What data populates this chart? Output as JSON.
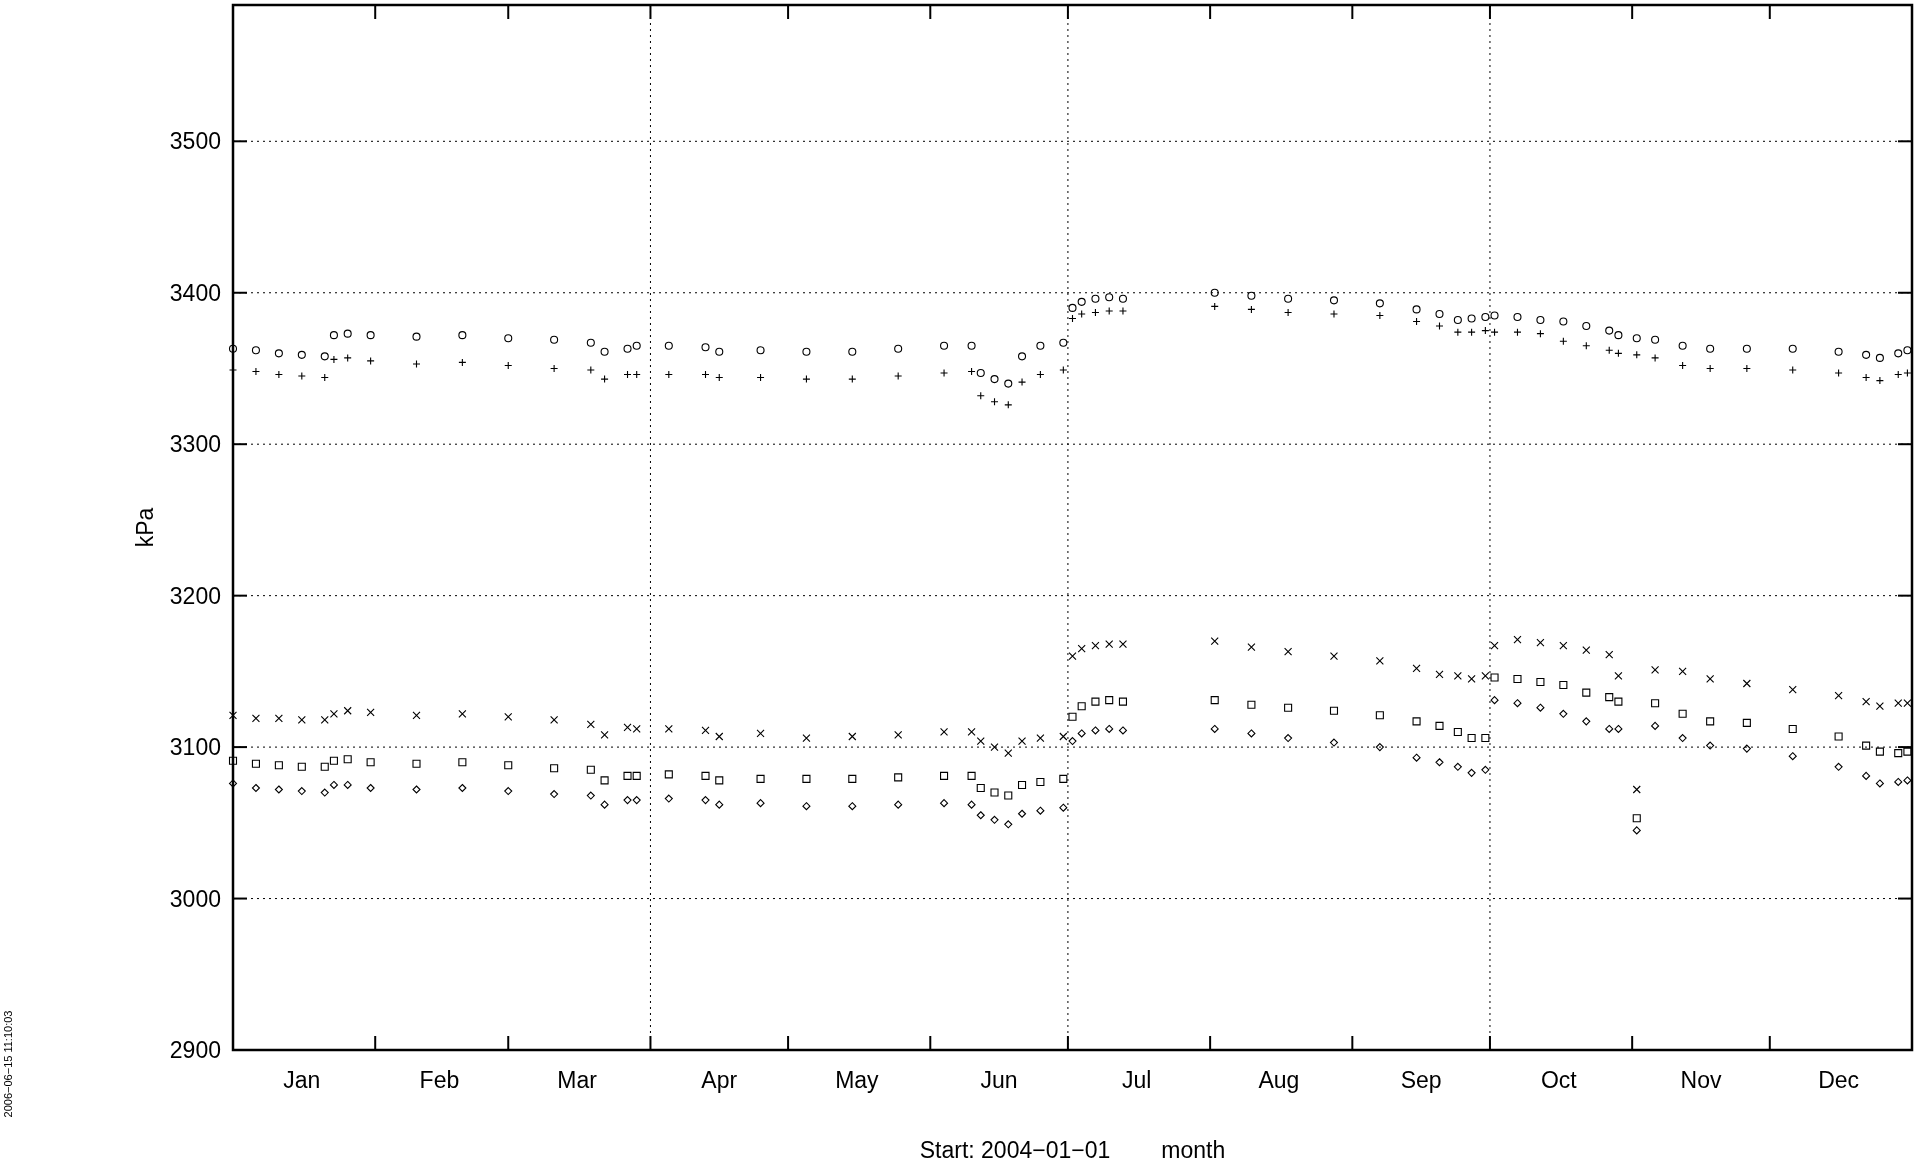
{
  "chart_data": {
    "type": "scatter",
    "xlabel": "Start: 2004−01−01        month",
    "ylabel": "kPa",
    "annotations": [
      "2006−06−15 11:10:03"
    ],
    "xlim": [
      "2004-01-01",
      "2005-01-01"
    ],
    "ylim": [
      2900,
      3590
    ],
    "yticks": [
      2900,
      3000,
      3100,
      3200,
      3300,
      3400,
      3500
    ],
    "xticks": [
      {
        "value": "2004-01-16",
        "label": "Jan"
      },
      {
        "value": "2004-02-01",
        "label": null
      },
      {
        "value": "2004-02-15",
        "label": "Feb"
      },
      {
        "value": "2004-03-01",
        "label": null
      },
      {
        "value": "2004-03-16",
        "label": "Mar"
      },
      {
        "value": "2004-04-01",
        "label": null
      },
      {
        "value": "2004-04-16",
        "label": "Apr"
      },
      {
        "value": "2004-05-01",
        "label": null
      },
      {
        "value": "2004-05-16",
        "label": "May"
      },
      {
        "value": "2004-06-01",
        "label": null
      },
      {
        "value": "2004-06-16",
        "label": "Jun"
      },
      {
        "value": "2004-07-01",
        "label": null
      },
      {
        "value": "2004-07-16",
        "label": "Jul"
      },
      {
        "value": "2004-08-01",
        "label": null
      },
      {
        "value": "2004-08-16",
        "label": "Aug"
      },
      {
        "value": "2004-09-01",
        "label": null
      },
      {
        "value": "2004-09-16",
        "label": "Sep"
      },
      {
        "value": "2004-10-01",
        "label": null
      },
      {
        "value": "2004-10-16",
        "label": "Oct"
      },
      {
        "value": "2004-11-01",
        "label": null
      },
      {
        "value": "2004-11-16",
        "label": "Nov"
      },
      {
        "value": "2004-12-01",
        "label": null
      },
      {
        "value": "2004-12-16",
        "label": "Dec"
      }
    ],
    "grid": "y",
    "ref_lines": [
      {
        "axis": "x",
        "value": "2004-04-01",
        "line_style": "dotted"
      },
      {
        "axis": "x",
        "value": "2004-07-01",
        "line_style": "dotted"
      },
      {
        "axis": "x",
        "value": "2004-10-01",
        "line_style": "dotted"
      }
    ],
    "x": [
      "2004-01-01",
      "2004-01-06",
      "2004-01-11",
      "2004-01-16",
      "2004-01-21",
      "2004-01-23",
      "2004-01-26",
      "2004-01-31",
      "2004-02-10",
      "2004-02-20",
      "2004-03-01",
      "2004-03-11",
      "2004-03-19",
      "2004-03-22",
      "2004-03-27",
      "2004-03-29",
      "2004-04-05",
      "2004-04-13",
      "2004-04-16",
      "2004-04-25",
      "2004-05-05",
      "2004-05-15",
      "2004-05-25",
      "2004-06-04",
      "2004-06-10",
      "2004-06-12",
      "2004-06-15",
      "2004-06-18",
      "2004-06-21",
      "2004-06-25",
      "2004-06-30",
      "2004-07-02",
      "2004-07-04",
      "2004-07-07",
      "2004-07-10",
      "2004-07-13",
      "2004-08-02",
      "2004-08-10",
      "2004-08-18",
      "2004-08-28",
      "2004-09-07",
      "2004-09-15",
      "2004-09-20",
      "2004-09-24",
      "2004-09-27",
      "2004-09-30",
      "2004-10-02",
      "2004-10-07",
      "2004-10-12",
      "2004-10-17",
      "2004-10-22",
      "2004-10-27",
      "2004-10-29",
      "2004-11-02",
      "2004-11-06",
      "2004-11-12",
      "2004-11-18",
      "2004-11-26",
      "2004-12-06",
      "2004-12-16",
      "2004-12-22",
      "2004-12-25",
      "2004-12-29",
      "2004-12-31"
    ],
    "series": [
      {
        "color": "#000000",
        "marker": "circle",
        "values": [
          3363,
          3362,
          3360,
          3359,
          3358,
          3372,
          3373,
          3372,
          3371,
          3372,
          3370,
          3369,
          3367,
          3361,
          3363,
          3365,
          3365,
          3364,
          3361,
          3362,
          3361,
          3361,
          3363,
          3365,
          3365,
          3347,
          3343,
          3340,
          3358,
          3365,
          3367,
          3390,
          3394,
          3396,
          3397,
          3396,
          3400,
          3398,
          3396,
          3395,
          3393,
          3389,
          3386,
          3382,
          3383,
          3384,
          3385,
          3384,
          3382,
          3381,
          3378,
          3375,
          3372,
          3370,
          3369,
          3365,
          3363,
          3363,
          3363,
          3361,
          3359,
          3357,
          3360,
          3362
        ]
      },
      {
        "color": "#000000",
        "marker": "plus",
        "values": [
          3349,
          3348,
          3346,
          3345,
          3344,
          3356,
          3357,
          3355,
          3353,
          3354,
          3352,
          3350,
          3349,
          3343,
          3346,
          3346,
          3346,
          3346,
          3344,
          3344,
          3343,
          3343,
          3345,
          3347,
          3348,
          3332,
          3328,
          3326,
          3341,
          3346,
          3349,
          3383,
          3386,
          3387,
          3388,
          3388,
          3391,
          3389,
          3387,
          3386,
          3385,
          3381,
          3378,
          3374,
          3374,
          3375,
          3374,
          3374,
          3373,
          3368,
          3365,
          3362,
          3360,
          3359,
          3357,
          3352,
          3350,
          3350,
          3349,
          3347,
          3344,
          3342,
          3346,
          3347
        ]
      },
      {
        "color": "#000000",
        "marker": "cross",
        "values": [
          3121,
          3119,
          3119,
          3118,
          3118,
          3122,
          3124,
          3123,
          3121,
          3122,
          3120,
          3118,
          3115,
          3108,
          3113,
          3112,
          3112,
          3111,
          3107,
          3109,
          3106,
          3107,
          3108,
          3110,
          3110,
          3104,
          3100,
          3096,
          3104,
          3106,
          3107,
          3160,
          3165,
          3167,
          3168,
          3168,
          3170,
          3166,
          3163,
          3160,
          3157,
          3152,
          3148,
          3147,
          3145,
          3147,
          3167,
          3171,
          3169,
          3167,
          3164,
          3161,
          3147,
          3072,
          3151,
          3150,
          3145,
          3142,
          3138,
          3134,
          3130,
          3127,
          3129,
          3129
        ]
      },
      {
        "color": "#000000",
        "marker": "square",
        "values": [
          3091,
          3089,
          3088,
          3087,
          3087,
          3091,
          3092,
          3090,
          3089,
          3090,
          3088,
          3086,
          3085,
          3078,
          3081,
          3081,
          3082,
          3081,
          3078,
          3079,
          3079,
          3079,
          3080,
          3081,
          3081,
          3073,
          3070,
          3068,
          3075,
          3077,
          3079,
          3120,
          3127,
          3130,
          3131,
          3130,
          3131,
          3128,
          3126,
          3124,
          3121,
          3117,
          3114,
          3110,
          3106,
          3106,
          3146,
          3145,
          3143,
          3141,
          3136,
          3133,
          3130,
          3053,
          3129,
          3122,
          3117,
          3116,
          3112,
          3107,
          3101,
          3097,
          3096,
          3097
        ]
      },
      {
        "color": "#000000",
        "marker": "diamond",
        "values": [
          3076,
          3073,
          3072,
          3071,
          3070,
          3075,
          3075,
          3073,
          3072,
          3073,
          3071,
          3069,
          3068,
          3062,
          3065,
          3065,
          3066,
          3065,
          3062,
          3063,
          3061,
          3061,
          3062,
          3063,
          3062,
          3055,
          3052,
          3049,
          3056,
          3058,
          3060,
          3104,
          3109,
          3111,
          3112,
          3111,
          3112,
          3109,
          3106,
          3103,
          3100,
          3093,
          3090,
          3087,
          3083,
          3085,
          3131,
          3129,
          3126,
          3122,
          3117,
          3112,
          3112,
          3045,
          3114,
          3106,
          3101,
          3099,
          3094,
          3087,
          3081,
          3076,
          3077,
          3078
        ]
      }
    ]
  }
}
